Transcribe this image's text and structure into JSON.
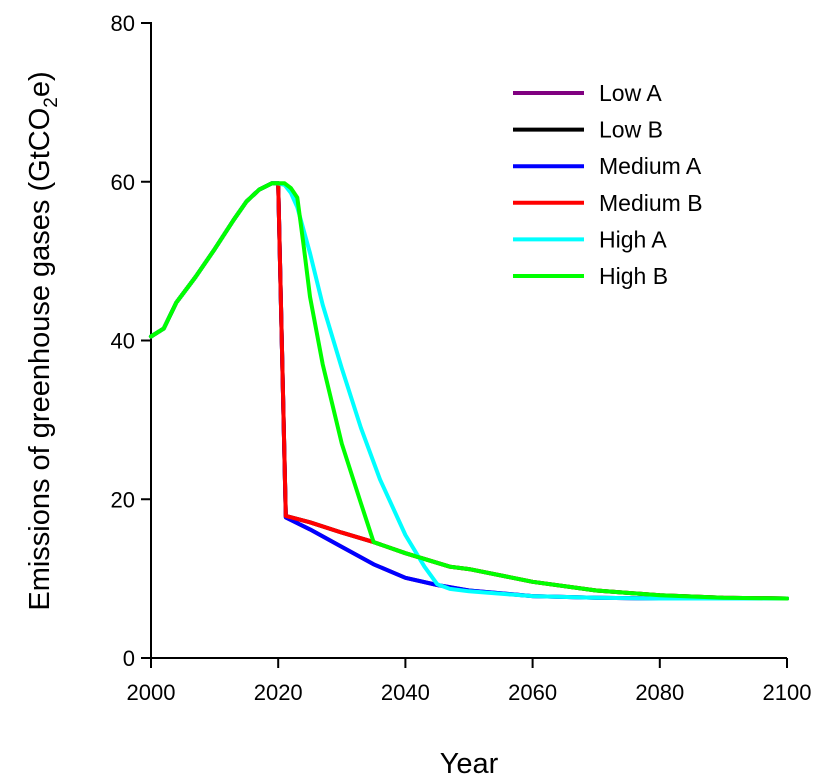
{
  "chart_data": {
    "type": "line",
    "title": "",
    "xlabel": "Year",
    "ylabel": {
      "main": "Emissions of greenhouse gases (GtCO",
      "sub": "2",
      "end": "e)"
    },
    "xlim": [
      2000,
      2100
    ],
    "ylim": [
      0,
      80
    ],
    "xticks": [
      "2000",
      "2020",
      "2040",
      "2060",
      "2080",
      "2100"
    ],
    "yticks": [
      "0",
      "20",
      "40",
      "60",
      "80"
    ],
    "grid": false,
    "legend_position": "top-right",
    "series": [
      {
        "name": "Low A",
        "color": "#800080",
        "points": [
          [
            2000,
            40.5
          ],
          [
            2002,
            41.5
          ],
          [
            2004,
            44.8
          ],
          [
            2007,
            48
          ],
          [
            2010,
            51.5
          ],
          [
            2013,
            55.2
          ],
          [
            2015,
            57.5
          ],
          [
            2017,
            59
          ],
          [
            2019,
            59.8
          ],
          [
            2020,
            59.8
          ],
          [
            2021.2,
            17.7
          ],
          [
            2025,
            16.2
          ],
          [
            2030,
            14
          ],
          [
            2035,
            11.8
          ],
          [
            2040,
            10.1
          ],
          [
            2045,
            9.2
          ],
          [
            2050,
            8.5
          ],
          [
            2060,
            7.8
          ],
          [
            2070,
            7.6
          ],
          [
            2080,
            7.5
          ],
          [
            2090,
            7.5
          ],
          [
            2100,
            7.5
          ]
        ]
      },
      {
        "name": "Low B",
        "color": "#000000",
        "points": [
          [
            2000,
            40.5
          ],
          [
            2002,
            41.5
          ],
          [
            2004,
            44.8
          ],
          [
            2007,
            48
          ],
          [
            2010,
            51.5
          ],
          [
            2013,
            55.2
          ],
          [
            2015,
            57.5
          ],
          [
            2017,
            59
          ],
          [
            2019,
            59.8
          ],
          [
            2020,
            59.8
          ],
          [
            2021.2,
            17.9
          ],
          [
            2025,
            17.1
          ],
          [
            2030,
            15.8
          ],
          [
            2035,
            14.6
          ],
          [
            2040,
            13.2
          ],
          [
            2047,
            11.5
          ],
          [
            2050,
            11.2
          ],
          [
            2060,
            9.6
          ],
          [
            2070,
            8.5
          ],
          [
            2080,
            7.9
          ],
          [
            2090,
            7.6
          ],
          [
            2100,
            7.5
          ]
        ]
      },
      {
        "name": "Medium A",
        "color": "#0000ff",
        "points": [
          [
            2000,
            40.5
          ],
          [
            2002,
            41.5
          ],
          [
            2004,
            44.8
          ],
          [
            2007,
            48
          ],
          [
            2010,
            51.5
          ],
          [
            2013,
            55.2
          ],
          [
            2015,
            57.5
          ],
          [
            2017,
            59
          ],
          [
            2019,
            59.8
          ],
          [
            2020,
            59.8
          ],
          [
            2021.2,
            17.7
          ],
          [
            2025,
            16.2
          ],
          [
            2030,
            14
          ],
          [
            2035,
            11.8
          ],
          [
            2040,
            10.1
          ],
          [
            2045,
            9.2
          ],
          [
            2050,
            8.5
          ],
          [
            2060,
            7.8
          ],
          [
            2070,
            7.6
          ],
          [
            2080,
            7.5
          ],
          [
            2090,
            7.5
          ],
          [
            2100,
            7.5
          ]
        ]
      },
      {
        "name": "Medium B",
        "color": "#ff0000",
        "points": [
          [
            2000,
            40.5
          ],
          [
            2002,
            41.5
          ],
          [
            2004,
            44.8
          ],
          [
            2007,
            48
          ],
          [
            2010,
            51.5
          ],
          [
            2013,
            55.2
          ],
          [
            2015,
            57.5
          ],
          [
            2017,
            59
          ],
          [
            2019,
            59.8
          ],
          [
            2020,
            59.8
          ],
          [
            2021.2,
            17.9
          ],
          [
            2025,
            17.1
          ],
          [
            2030,
            15.8
          ],
          [
            2035,
            14.6
          ],
          [
            2040,
            13.2
          ],
          [
            2047,
            11.5
          ],
          [
            2050,
            11.2
          ],
          [
            2060,
            9.6
          ],
          [
            2070,
            8.5
          ],
          [
            2080,
            7.9
          ],
          [
            2090,
            7.6
          ],
          [
            2100,
            7.5
          ]
        ]
      },
      {
        "name": "High A",
        "color": "#00ffff",
        "points": [
          [
            2000,
            40.5
          ],
          [
            2002,
            41.5
          ],
          [
            2004,
            44.8
          ],
          [
            2007,
            48
          ],
          [
            2010,
            51.5
          ],
          [
            2013,
            55.2
          ],
          [
            2015,
            57.5
          ],
          [
            2017,
            59
          ],
          [
            2019,
            59.8
          ],
          [
            2020,
            59.8
          ],
          [
            2021,
            59.6
          ],
          [
            2022,
            58.6
          ],
          [
            2023,
            56.8
          ],
          [
            2025,
            51
          ],
          [
            2027,
            44.5
          ],
          [
            2030,
            36.5
          ],
          [
            2033,
            29
          ],
          [
            2036,
            22.5
          ],
          [
            2040,
            15.5
          ],
          [
            2043,
            11.5
          ],
          [
            2045,
            9.3
          ],
          [
            2047,
            8.7
          ],
          [
            2050,
            8.4
          ],
          [
            2060,
            7.8
          ],
          [
            2070,
            7.6
          ],
          [
            2080,
            7.5
          ],
          [
            2090,
            7.5
          ],
          [
            2100,
            7.5
          ]
        ]
      },
      {
        "name": "High B",
        "color": "#00ff00",
        "points": [
          [
            2000,
            40.5
          ],
          [
            2002,
            41.5
          ],
          [
            2004,
            44.8
          ],
          [
            2007,
            48
          ],
          [
            2010,
            51.5
          ],
          [
            2013,
            55.2
          ],
          [
            2015,
            57.5
          ],
          [
            2017,
            59
          ],
          [
            2019,
            59.8
          ],
          [
            2020,
            59.8
          ],
          [
            2021,
            59.8
          ],
          [
            2022,
            59.2
          ],
          [
            2023,
            58
          ],
          [
            2024,
            52
          ],
          [
            2025,
            45.5
          ],
          [
            2027,
            37
          ],
          [
            2030,
            27
          ],
          [
            2033,
            19.5
          ],
          [
            2035,
            14.6
          ],
          [
            2040,
            13.2
          ],
          [
            2047,
            11.5
          ],
          [
            2050,
            11.2
          ],
          [
            2060,
            9.6
          ],
          [
            2070,
            8.5
          ],
          [
            2080,
            7.9
          ],
          [
            2090,
            7.6
          ],
          [
            2100,
            7.5
          ]
        ]
      }
    ]
  }
}
